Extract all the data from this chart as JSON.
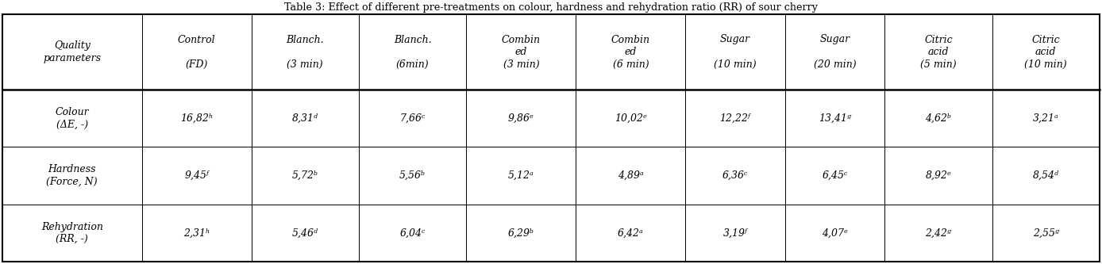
{
  "title": "Table 3: Effect of different pre-treatments on colour, hardness and rehydration ratio (RR) of sour cherry",
  "col_headers": [
    "Quality\nparameters",
    "Control\n\n(FD)",
    "Blanch.\n\n(3 min)",
    "Blanch.\n\n(6min)",
    "Combin\ned\n(3 min)",
    "Combin\ned\n(6 min)",
    "Sugar\n\n(10 min)",
    "Sugar\n\n(20 min)",
    "Citric\nacid\n(5 min)",
    "Citric\nacid\n(10 min)"
  ],
  "rows": [
    {
      "label": "Colour\n(ΔE, -)",
      "values": [
        "16,82ʰ",
        "8,31ᵈ",
        "7,66ᶜ",
        "9,86ᵉ",
        "10,02ᵉ",
        "12,22ᶠ",
        "13,41ᵍ",
        "4,62ᵇ",
        "3,21ᵃ"
      ]
    },
    {
      "label": "Hardness\n(Force, N)",
      "values": [
        "9,45ᶠ",
        "5,72ᵇ",
        "5,56ᵇ",
        "5,12ᵃ",
        "4,89ᵃ",
        "6,36ᶜ",
        "6,45ᶜ",
        "8,92ᵉ",
        "8,54ᵈ"
      ]
    },
    {
      "label": "Rehydration\n(RR, -)",
      "values": [
        "2,31ʰ",
        "5,46ᵈ",
        "6,04ᶜ",
        "6,29ᵇ",
        "6,42ᵃ",
        "3,19ᶠ",
        "4,07ᵉ",
        "2,42ᵍ",
        "2,55ᵍ"
      ]
    }
  ],
  "background_color": "#ffffff",
  "border_color": "#000000",
  "font_size": 9.0,
  "title_font_size": 9.2
}
